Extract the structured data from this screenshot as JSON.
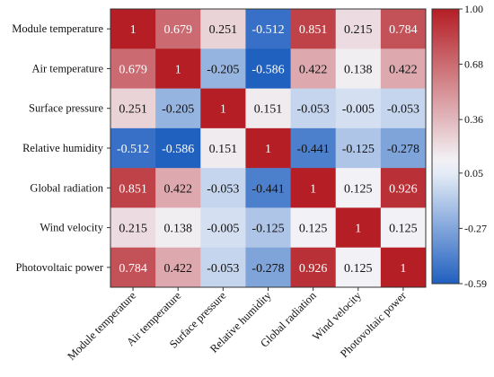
{
  "chart_data": {
    "type": "heatmap",
    "title": "",
    "labels": [
      "Module temperature",
      "Air temperature",
      "Surface pressure",
      "Relative humidity",
      "Global radiation",
      "Wind velocity",
      "Photovoltaic power"
    ],
    "values": [
      [
        1,
        0.679,
        0.251,
        -0.512,
        0.851,
        0.215,
        0.784
      ],
      [
        0.679,
        1,
        -0.205,
        -0.586,
        0.422,
        0.138,
        0.422
      ],
      [
        0.251,
        -0.205,
        1,
        0.151,
        -0.053,
        -0.005,
        -0.053
      ],
      [
        -0.512,
        -0.586,
        0.151,
        1,
        -0.441,
        -0.125,
        -0.278
      ],
      [
        0.851,
        0.422,
        -0.053,
        -0.441,
        1,
        0.125,
        0.926
      ],
      [
        0.215,
        0.138,
        -0.005,
        -0.125,
        0.125,
        1,
        0.125
      ],
      [
        0.784,
        0.422,
        -0.053,
        -0.278,
        0.926,
        0.125,
        1
      ]
    ],
    "colorbar": {
      "min": -0.59,
      "max": 1.0,
      "ticks": [
        "1.00",
        "0.68",
        "0.36",
        "0.05",
        "-0.27",
        "-0.59"
      ],
      "low_color": "#1f5fbf",
      "mid_color": "#f4f7fb",
      "high_color": "#b41e24"
    },
    "legend_position": "right"
  }
}
